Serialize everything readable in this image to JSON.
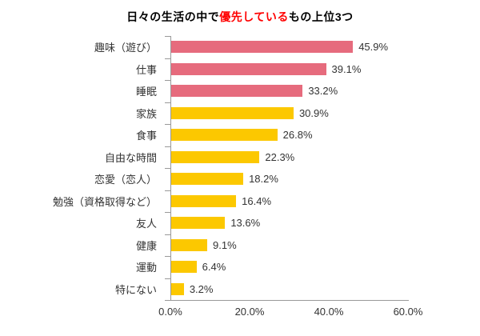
{
  "title": {
    "full_text": "日々の生活の中で優先しているもの上位3つ",
    "parts": [
      {
        "text": "日々の生活の中で",
        "color": "#000000"
      },
      {
        "text": "優先している",
        "color": "#ff0000"
      },
      {
        "text": "もの上位3つ",
        "color": "#000000"
      }
    ]
  },
  "chart_data": {
    "type": "bar",
    "orientation": "horizontal",
    "title": "日々の生活の中で優先しているもの上位3つ",
    "categories": [
      "趣味（遊び）",
      "仕事",
      "睡眠",
      "家族",
      "食事",
      "自由な時間",
      "恋愛（恋人）",
      "勉強（資格取得など）",
      "友人",
      "健康",
      "運動",
      "特にない"
    ],
    "values": [
      45.9,
      39.1,
      33.2,
      30.9,
      26.8,
      22.3,
      18.2,
      16.4,
      13.6,
      9.1,
      6.4,
      3.2
    ],
    "value_labels": [
      "45.9%",
      "39.1%",
      "33.2%",
      "30.9%",
      "26.8%",
      "22.3%",
      "18.2%",
      "16.4%",
      "13.6%",
      "9.1%",
      "6.4%",
      "3.2%"
    ],
    "bar_colors": [
      "#e66b7d",
      "#e66b7d",
      "#e66b7d",
      "#fcc800",
      "#fcc800",
      "#fcc800",
      "#fcc800",
      "#fcc800",
      "#fcc800",
      "#fcc800",
      "#fcc800",
      "#fcc800"
    ],
    "xlabel": "",
    "ylabel": "",
    "xlim": [
      0,
      60
    ],
    "x_tick_labels": [
      "0.0%",
      "20.0%",
      "40.0%",
      "60.0%"
    ],
    "x_tick_values": [
      0,
      20,
      40,
      60
    ],
    "grid": false,
    "legend": false,
    "colors": {
      "top3_bar": "#e66b7d",
      "other_bar": "#fcc800",
      "axis": "#999999",
      "label_text": "#333333",
      "title_text": "#000000",
      "title_highlight": "#ff0000"
    }
  }
}
